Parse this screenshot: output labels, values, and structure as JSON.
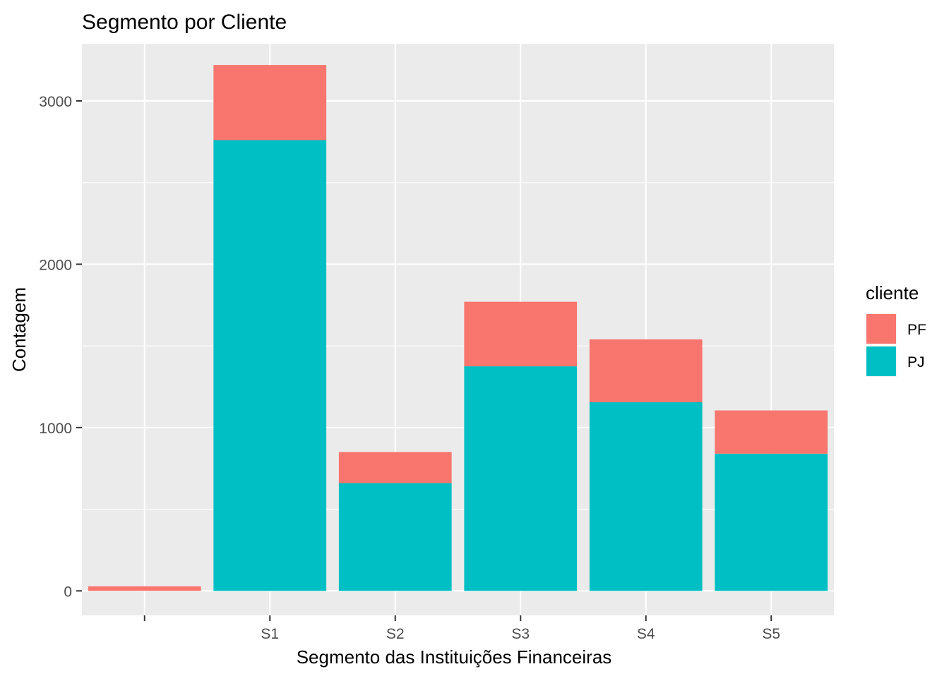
{
  "chart_data": {
    "type": "bar",
    "stacked": true,
    "title": "Segmento por Cliente",
    "xlabel": "Segmento das Instituições Financeiras",
    "ylabel": "Contagem",
    "categories": [
      "",
      "S1",
      "S2",
      "S3",
      "S4",
      "S5"
    ],
    "series": [
      {
        "name": "PF",
        "color": "#F8766D",
        "values": [
          28,
          460,
          190,
          395,
          385,
          265
        ]
      },
      {
        "name": "PJ",
        "color": "#00BFC4",
        "values": [
          0,
          2760,
          660,
          1375,
          1155,
          840
        ]
      }
    ],
    "ylim": [
      -150,
      3350
    ],
    "yticks": [
      0,
      1000,
      2000,
      3000
    ],
    "grid": true,
    "legend": {
      "title": "cliente",
      "position": "right"
    }
  }
}
